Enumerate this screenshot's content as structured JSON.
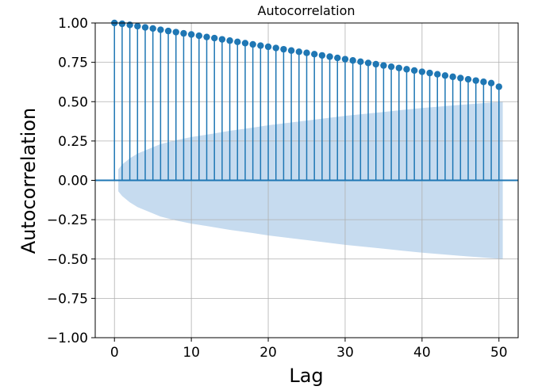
{
  "chart_data": {
    "type": "stem",
    "title": "Autocorrelation",
    "xlabel": "Lag",
    "ylabel": "Autocorrelation",
    "xlim": [
      -2.5,
      52.5
    ],
    "ylim": [
      -1.0,
      1.0
    ],
    "x_ticks": [
      0,
      10,
      20,
      30,
      40,
      50
    ],
    "x_tick_labels": [
      "0",
      "10",
      "20",
      "30",
      "40",
      "50"
    ],
    "y_ticks": [
      -1.0,
      -0.75,
      -0.5,
      -0.25,
      0.0,
      0.25,
      0.5,
      0.75,
      1.0
    ],
    "y_tick_labels": [
      "−1.00",
      "−0.75",
      "−0.50",
      "−0.25",
      "0.00",
      "0.25",
      "0.50",
      "0.75",
      "1.00"
    ],
    "grid": true,
    "colors": {
      "stem": "#1f77b4",
      "confidence_band": "#c6dbef"
    },
    "lags": [
      0,
      1,
      2,
      3,
      4,
      5,
      6,
      7,
      8,
      9,
      10,
      11,
      12,
      13,
      14,
      15,
      16,
      17,
      18,
      19,
      20,
      21,
      22,
      23,
      24,
      25,
      26,
      27,
      28,
      29,
      30,
      31,
      32,
      33,
      34,
      35,
      36,
      37,
      38,
      39,
      40,
      41,
      42,
      43,
      44,
      45,
      46,
      47,
      48,
      49,
      50
    ],
    "acf": [
      1.0,
      0.995,
      0.988,
      0.98,
      0.972,
      0.965,
      0.957,
      0.949,
      0.942,
      0.934,
      0.927,
      0.919,
      0.911,
      0.904,
      0.896,
      0.888,
      0.88,
      0.872,
      0.864,
      0.856,
      0.849,
      0.841,
      0.833,
      0.825,
      0.817,
      0.81,
      0.802,
      0.794,
      0.786,
      0.778,
      0.77,
      0.762,
      0.754,
      0.746,
      0.738,
      0.73,
      0.722,
      0.714,
      0.706,
      0.698,
      0.69,
      0.682,
      0.674,
      0.666,
      0.658,
      0.65,
      0.642,
      0.634,
      0.626,
      0.618,
      0.595
    ],
    "confidence_band": {
      "x_start": 0.5,
      "x_end": 50.5,
      "lags": [
        0.5,
        1,
        2,
        3,
        4,
        5,
        6,
        8,
        10,
        12,
        15,
        18,
        20,
        25,
        30,
        35,
        40,
        45,
        50.5
      ],
      "upper": [
        0.07,
        0.1,
        0.14,
        0.17,
        0.19,
        0.21,
        0.23,
        0.255,
        0.275,
        0.29,
        0.315,
        0.335,
        0.35,
        0.38,
        0.41,
        0.435,
        0.46,
        0.48,
        0.5
      ]
    }
  }
}
